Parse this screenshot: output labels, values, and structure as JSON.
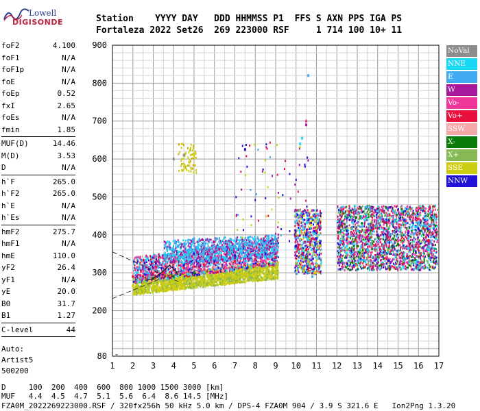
{
  "logo": {
    "brand": "Lowell",
    "name": "DIGISONDE"
  },
  "header": {
    "line1": "Station    YYYY DAY   DDD HHMMSS P1  FFS S AXN PPS IGA PS",
    "line2": "Fortaleza 2022 Set26  269 223000 RSF     1 714 100 10+ 11"
  },
  "params": [
    [
      {
        "name": "foF2",
        "value": "4.100"
      },
      {
        "name": "foF1",
        "value": "N/A"
      },
      {
        "name": "foF1p",
        "value": "N/A"
      },
      {
        "name": "foE",
        "value": "N/A"
      },
      {
        "name": "foEp",
        "value": "0.52"
      },
      {
        "name": "fxI",
        "value": "2.65"
      },
      {
        "name": "foEs",
        "value": "N/A"
      },
      {
        "name": "fmin",
        "value": "1.85"
      }
    ],
    [
      {
        "name": "MUF(D)",
        "value": "14.46"
      },
      {
        "name": "M(D)",
        "value": "3.53"
      },
      {
        "name": "D",
        "value": "N/A"
      }
    ],
    [
      {
        "name": "h`F",
        "value": "265.0"
      },
      {
        "name": "h`F2",
        "value": "265.0"
      },
      {
        "name": "h`E",
        "value": "N/A"
      },
      {
        "name": "h`Es",
        "value": "N/A"
      }
    ],
    [
      {
        "name": "hmF2",
        "value": "275.7"
      },
      {
        "name": "hmF1",
        "value": "N/A"
      },
      {
        "name": "hmE",
        "value": "110.0"
      },
      {
        "name": "yF2",
        "value": "26.4"
      },
      {
        "name": "yF1",
        "value": "N/A"
      },
      {
        "name": "yE",
        "value": "20.0"
      },
      {
        "name": "B0",
        "value": "31.7"
      },
      {
        "name": "B1",
        "value": "1.27"
      }
    ],
    [
      {
        "name": "C-level",
        "value": "44"
      }
    ]
  ],
  "notes": [
    "Auto:",
    "Artist5",
    "500200"
  ],
  "legend": [
    {
      "label": "NoVal",
      "color": "#8c8c8c"
    },
    {
      "label": "NNE",
      "color": "#19d7f5"
    },
    {
      "label": "E",
      "color": "#3faaf0"
    },
    {
      "label": "W",
      "color": "#a8189a"
    },
    {
      "label": "Vo-",
      "color": "#f0389c"
    },
    {
      "label": "Vo+",
      "color": "#e8103c"
    },
    {
      "label": "SSW",
      "color": "#f4a8a8"
    },
    {
      "label": "X-",
      "color": "#0a7a0a"
    },
    {
      "label": "X+",
      "color": "#86b856"
    },
    {
      "label": "SSE",
      "color": "#cccc10"
    },
    {
      "label": "NNW",
      "color": "#2212d8"
    }
  ],
  "footer": {
    "d_line": "D     100  200  400  600  800 1000 1500 3000 [km]",
    "muf_line": "MUF   4.4  4.5  4.7  5.1  5.6  6.4  8.6 14.5 [MHz]",
    "file_line": "FZA0M_2022269223000.RSF / 320fx256h 50 kHz 5.0 km / DPS-4 FZA0M 904 / 3.9 S 321.6 E   Ion2Png 1.3.20"
  },
  "chart_data": {
    "type": "scatter",
    "xlim": [
      1,
      17
    ],
    "ylim": [
      80,
      900
    ],
    "x_ticks": [
      "1",
      "2",
      "3",
      "4",
      "5",
      "6",
      "7",
      "8",
      "9",
      "10",
      "11",
      "12",
      "13",
      "14",
      "15",
      "16",
      "17"
    ],
    "y_ticks": [
      "80",
      "200",
      "300",
      "400",
      "500",
      "600",
      "700",
      "800",
      "900"
    ],
    "grid": true,
    "series": [
      {
        "name": "SSE",
        "color": "#cccc10",
        "points": [
          [
            2.0,
            265
          ],
          [
            2.5,
            262
          ],
          [
            3.0,
            268
          ],
          [
            3.5,
            272
          ],
          [
            4.0,
            276
          ],
          [
            4.5,
            280
          ],
          [
            5.0,
            284
          ],
          [
            5.5,
            287
          ],
          [
            6.0,
            290
          ],
          [
            6.5,
            292
          ],
          [
            7.0,
            292
          ],
          [
            7.5,
            295
          ],
          [
            8.0,
            296
          ],
          [
            8.5,
            298
          ],
          [
            9.0,
            298
          ],
          [
            10.2,
            315
          ],
          [
            10.6,
            330
          ],
          [
            11.0,
            320
          ],
          [
            10.9,
            300
          ]
        ]
      },
      {
        "name": "NNE",
        "color": "#19d7f5",
        "points": [
          [
            3.0,
            330
          ],
          [
            4.0,
            345
          ],
          [
            5.0,
            360
          ],
          [
            6.0,
            350
          ],
          [
            6.5,
            340
          ],
          [
            7.5,
            330
          ],
          [
            8.5,
            340
          ],
          [
            10.2,
            640
          ],
          [
            10.3,
            655
          ],
          [
            12.5,
            370
          ],
          [
            13.5,
            360
          ],
          [
            14.5,
            355
          ],
          [
            15.5,
            365
          ],
          [
            16.5,
            360
          ]
        ]
      },
      {
        "name": "E",
        "color": "#3faaf0",
        "points": [
          [
            4.0,
            360
          ],
          [
            4.5,
            375
          ],
          [
            5.0,
            390
          ],
          [
            5.5,
            380
          ],
          [
            6.0,
            370
          ],
          [
            6.5,
            360
          ],
          [
            7.0,
            370
          ],
          [
            7.5,
            365
          ],
          [
            8.5,
            360
          ],
          [
            10.6,
            820
          ],
          [
            10.8,
            290
          ],
          [
            12.2,
            380
          ],
          [
            13.2,
            370
          ],
          [
            14.5,
            380
          ],
          [
            15.5,
            390
          ],
          [
            16.5,
            370
          ]
        ]
      },
      {
        "name": "W",
        "color": "#a8189a",
        "points": [
          [
            3.0,
            310
          ],
          [
            4.0,
            330
          ],
          [
            5.0,
            350
          ],
          [
            6.0,
            355
          ],
          [
            7.0,
            340
          ],
          [
            8.0,
            345
          ],
          [
            9.0,
            350
          ],
          [
            10.5,
            690
          ],
          [
            10.7,
            380
          ],
          [
            12.5,
            400
          ],
          [
            13.5,
            390
          ],
          [
            14.5,
            405
          ],
          [
            15.5,
            410
          ],
          [
            16.5,
            380
          ]
        ]
      },
      {
        "name": "Vo+",
        "color": "#e8103c",
        "points": [
          [
            2.0,
            290
          ],
          [
            2.5,
            290
          ],
          [
            3.0,
            298
          ],
          [
            3.5,
            300
          ],
          [
            4.0,
            305
          ],
          [
            4.5,
            312
          ],
          [
            5.0,
            315
          ],
          [
            5.5,
            320
          ],
          [
            6.0,
            325
          ],
          [
            7.0,
            330
          ],
          [
            8.0,
            335
          ],
          [
            9.0,
            340
          ],
          [
            10.5,
            360
          ],
          [
            12.5,
            390
          ],
          [
            14.5,
            395
          ],
          [
            16.5,
            385
          ]
        ]
      },
      {
        "name": "Vo-",
        "color": "#f0389c",
        "points": [
          [
            2.5,
            285
          ],
          [
            3.5,
            290
          ],
          [
            4.5,
            300
          ],
          [
            5.5,
            310
          ],
          [
            6.5,
            318
          ],
          [
            7.5,
            325
          ],
          [
            8.5,
            330
          ],
          [
            10.5,
            700
          ],
          [
            13.0,
            380
          ],
          [
            15.0,
            385
          ],
          [
            16.0,
            375
          ]
        ]
      },
      {
        "name": "NNW",
        "color": "#2212d8",
        "points": [
          [
            4.5,
            320
          ],
          [
            5.0,
            350
          ],
          [
            6.0,
            330
          ],
          [
            7.0,
            345
          ],
          [
            7.5,
            625
          ],
          [
            8.5,
            350
          ],
          [
            10.0,
            370
          ],
          [
            10.5,
            400
          ],
          [
            11.0,
            390
          ],
          [
            12.5,
            410
          ],
          [
            14.0,
            400
          ],
          [
            15.5,
            405
          ],
          [
            16.0,
            415
          ]
        ]
      },
      {
        "name": "SSW",
        "color": "#f4a8a8",
        "points": [
          [
            2.0,
            300
          ],
          [
            3.0,
            305
          ],
          [
            4.0,
            300
          ],
          [
            5.0,
            310
          ],
          [
            6.0,
            315
          ],
          [
            7.0,
            320
          ]
        ]
      },
      {
        "name": "X+",
        "color": "#86b856",
        "points": [
          [
            2.5,
            275
          ],
          [
            3.5,
            280
          ],
          [
            4.5,
            285
          ],
          [
            5.5,
            290
          ],
          [
            10.0,
            325
          ],
          [
            12.5,
            360
          ],
          [
            14.5,
            360
          ],
          [
            16.5,
            350
          ]
        ]
      },
      {
        "name": "X-",
        "color": "#0a7a0a",
        "points": [
          [
            3.0,
            285
          ],
          [
            4.0,
            290
          ],
          [
            5.0,
            300
          ],
          [
            10.5,
            340
          ],
          [
            13.0,
            370
          ],
          [
            15.0,
            375
          ],
          [
            16.5,
            345
          ]
        ]
      },
      {
        "name": "NoVal",
        "color": "#8c8c8c",
        "points": [
          [
            1.2,
            82
          ],
          [
            4.0,
            600
          ],
          [
            4.5,
            610
          ]
        ]
      }
    ]
  }
}
